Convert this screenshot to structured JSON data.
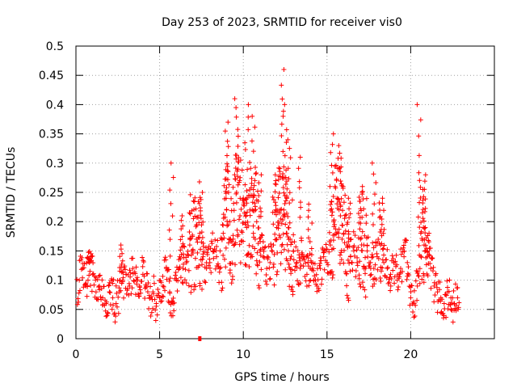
{
  "chart_data": {
    "type": "scatter",
    "title": "Day 253 of 2023, SRMTID for receiver vis0",
    "xlabel": "GPS time / hours",
    "ylabel": "SRMTID / TECUs",
    "xlim": [
      0,
      25
    ],
    "ylim": [
      0,
      0.5
    ],
    "xticks": [
      "0",
      "5",
      "10",
      "15",
      "20"
    ],
    "xtick_values": [
      0,
      5,
      10,
      15,
      20
    ],
    "yticks": [
      "0",
      "0.05",
      "0.1",
      "0.15",
      "0.2",
      "0.25",
      "0.3",
      "0.35",
      "0.4",
      "0.45",
      "0.5"
    ],
    "ytick_values": [
      0,
      0.05,
      0.1,
      0.15,
      0.2,
      0.25,
      0.3,
      0.35,
      0.4,
      0.45,
      0.5
    ],
    "grid": true,
    "marker": "+",
    "color": "#ff0000",
    "data_gap_marker": {
      "x": 7.4,
      "y": 0
    },
    "series": [
      {
        "name": "vis0",
        "x": [
          0.0,
          0.2,
          0.4,
          0.6,
          0.8,
          1.0,
          1.2,
          1.4,
          1.6,
          1.8,
          2.0,
          2.2,
          2.4,
          2.6,
          2.8,
          3.0,
          3.2,
          3.4,
          3.6,
          3.8,
          4.0,
          4.2,
          4.4,
          4.6,
          4.8,
          5.0,
          5.2,
          5.4,
          5.6,
          5.8,
          6.0,
          6.2,
          6.4,
          6.6,
          6.8,
          7.0,
          7.2,
          7.4,
          7.6,
          7.8,
          8.0,
          8.2,
          8.4,
          8.6,
          8.8,
          9.0,
          9.2,
          9.4,
          9.6,
          9.8,
          10.0,
          10.2,
          10.4,
          10.6,
          10.8,
          11.0,
          11.2,
          11.4,
          11.6,
          11.8,
          12.0,
          12.2,
          12.4,
          12.6,
          12.8,
          13.0,
          13.2,
          13.4,
          13.6,
          13.8,
          14.0,
          14.2,
          14.4,
          14.6,
          14.8,
          15.0,
          15.2,
          15.4,
          15.6,
          15.8,
          16.0,
          16.2,
          16.4,
          16.6,
          16.8,
          17.0,
          17.2,
          17.4,
          17.6,
          17.8,
          18.0,
          18.2,
          18.4,
          18.6,
          18.8,
          19.0,
          19.2,
          19.4,
          19.6,
          19.8,
          20.0,
          20.2,
          20.4,
          20.6,
          20.8,
          21.0,
          21.2,
          21.4,
          21.6,
          21.8,
          22.0,
          22.2,
          22.4,
          22.6,
          22.8
        ],
        "y": [
          0.07,
          0.1,
          0.12,
          0.09,
          0.13,
          0.11,
          0.08,
          0.09,
          0.07,
          0.06,
          0.08,
          0.07,
          0.06,
          0.08,
          0.1,
          0.11,
          0.09,
          0.12,
          0.1,
          0.09,
          0.11,
          0.09,
          0.07,
          0.08,
          0.06,
          0.07,
          0.09,
          0.12,
          0.08,
          0.06,
          0.1,
          0.14,
          0.12,
          0.13,
          0.16,
          0.15,
          0.17,
          0.18,
          0.14,
          0.12,
          0.13,
          0.15,
          0.14,
          0.12,
          0.18,
          0.22,
          0.2,
          0.17,
          0.25,
          0.21,
          0.24,
          0.19,
          0.22,
          0.18,
          0.2,
          0.15,
          0.14,
          0.12,
          0.13,
          0.16,
          0.19,
          0.22,
          0.21,
          0.18,
          0.17,
          0.15,
          0.13,
          0.12,
          0.14,
          0.11,
          0.12,
          0.1,
          0.09,
          0.12,
          0.14,
          0.13,
          0.16,
          0.2,
          0.24,
          0.21,
          0.18,
          0.16,
          0.14,
          0.15,
          0.13,
          0.17,
          0.16,
          0.15,
          0.13,
          0.12,
          0.14,
          0.16,
          0.13,
          0.12,
          0.11,
          0.13,
          0.1,
          0.12,
          0.14,
          0.13,
          0.07,
          0.06,
          0.09,
          0.18,
          0.16,
          0.14,
          0.12,
          0.09,
          0.08,
          0.07,
          0.06,
          0.08,
          0.07,
          0.06,
          0.07
        ]
      }
    ],
    "peaks": [
      {
        "x": 9.0,
        "y": 0.37
      },
      {
        "x": 9.6,
        "y": 0.41
      },
      {
        "x": 10.2,
        "y": 0.4
      },
      {
        "x": 10.6,
        "y": 0.38
      },
      {
        "x": 11.0,
        "y": 0.28
      },
      {
        "x": 12.0,
        "y": 0.28
      },
      {
        "x": 12.3,
        "y": 0.46
      },
      {
        "x": 12.5,
        "y": 0.4
      },
      {
        "x": 12.7,
        "y": 0.34
      },
      {
        "x": 13.4,
        "y": 0.31
      },
      {
        "x": 14.0,
        "y": 0.23
      },
      {
        "x": 15.3,
        "y": 0.35
      },
      {
        "x": 15.8,
        "y": 0.33
      },
      {
        "x": 16.3,
        "y": 0.24
      },
      {
        "x": 17.0,
        "y": 0.26
      },
      {
        "x": 17.8,
        "y": 0.3
      },
      {
        "x": 18.3,
        "y": 0.24
      },
      {
        "x": 20.5,
        "y": 0.4
      },
      {
        "x": 20.8,
        "y": 0.28
      },
      {
        "x": 21.0,
        "y": 0.18
      },
      {
        "x": 5.7,
        "y": 0.3
      },
      {
        "x": 6.3,
        "y": 0.21
      },
      {
        "x": 7.5,
        "y": 0.25
      },
      {
        "x": 2.7,
        "y": 0.16
      },
      {
        "x": 0.8,
        "y": 0.14
      }
    ]
  }
}
